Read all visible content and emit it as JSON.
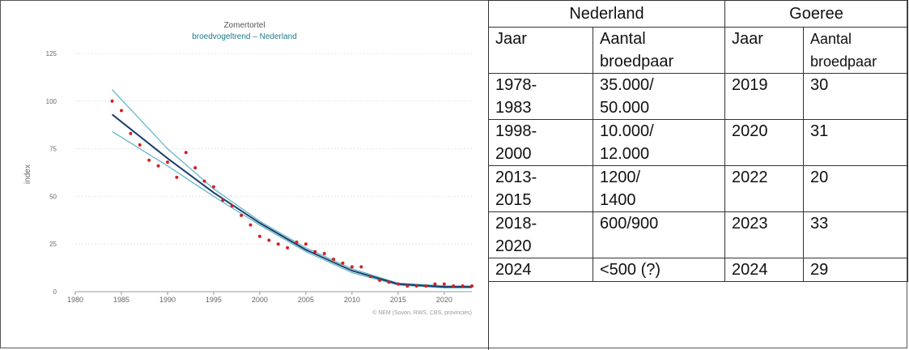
{
  "chart_data": {
    "type": "scatter",
    "title": "Zomertortel",
    "subtitle": "broedvogeltrend – Nederland",
    "ylabel": "index",
    "xlabel": "",
    "xlim": [
      1980,
      2023
    ],
    "ylim": [
      0,
      125
    ],
    "xticks": [
      1980,
      1985,
      1990,
      1995,
      2000,
      2005,
      2010,
      2015,
      2020
    ],
    "yticks": [
      0,
      25,
      50,
      75,
      100,
      125
    ],
    "grid": true,
    "credit": "© NEM (Sovon, RWS, CBS, provincies)",
    "points": {
      "x": [
        1984,
        1985,
        1986,
        1987,
        1988,
        1989,
        1990,
        1991,
        1992,
        1993,
        1994,
        1995,
        1996,
        1997,
        1998,
        1999,
        2000,
        2001,
        2002,
        2003,
        2004,
        2005,
        2006,
        2007,
        2008,
        2009,
        2010,
        2011,
        2012,
        2013,
        2014,
        2015,
        2016,
        2017,
        2018,
        2019,
        2020,
        2021,
        2022,
        2023
      ],
      "y": [
        100,
        95,
        83,
        77,
        69,
        66,
        68,
        60,
        73,
        65,
        58,
        55,
        48,
        45,
        40,
        35,
        29,
        27,
        25,
        23,
        26,
        25,
        21,
        20,
        17,
        15,
        13,
        13,
        8,
        6,
        5,
        4,
        3,
        3,
        3,
        4,
        4,
        3,
        3,
        3
      ]
    },
    "trend": {
      "x": [
        1984,
        1990,
        1995,
        2000,
        2005,
        2010,
        2015,
        2020,
        2023
      ],
      "y": [
        93,
        70,
        52,
        36,
        22,
        11,
        4,
        2.5,
        2.5
      ]
    },
    "upper": {
      "x": [
        1984,
        1990,
        1995,
        2000,
        2005,
        2010,
        2015,
        2020,
        2023
      ],
      "y": [
        106,
        75,
        54,
        37,
        23,
        12,
        4.5,
        3,
        3
      ]
    },
    "lower": {
      "x": [
        1984,
        1990,
        1995,
        2000,
        2005,
        2010,
        2015,
        2020,
        2023
      ],
      "y": [
        84,
        66,
        50,
        35,
        21,
        10,
        3.5,
        2,
        2
      ]
    },
    "colors": {
      "points": "#d42020",
      "trend": "#1a3f6f",
      "band": "#58b3c4",
      "title": "#555555",
      "subtitle": "#1e7a8c"
    }
  },
  "table": {
    "group_headers": [
      "Nederland",
      "Goeree"
    ],
    "column_headers": [
      [
        "Jaar"
      ],
      [
        "Aantal",
        "broedpaar"
      ],
      [
        "Jaar"
      ],
      [
        "Aantal",
        "broedpaar"
      ]
    ],
    "rows": [
      [
        [
          "1978-",
          "1983"
        ],
        [
          "35.000/",
          "50.000"
        ],
        [
          "2019"
        ],
        [
          "30"
        ]
      ],
      [
        [
          "1998-",
          "2000"
        ],
        [
          "10.000/",
          "12.000"
        ],
        [
          "2020"
        ],
        [
          "31"
        ]
      ],
      [
        [
          "2013-",
          "2015"
        ],
        [
          "1200/",
          "1400"
        ],
        [
          "2022"
        ],
        [
          "20"
        ]
      ],
      [
        [
          "2018-",
          "2020"
        ],
        [
          "600/900"
        ],
        [
          "2023"
        ],
        [
          "33"
        ]
      ],
      [
        [
          "2024"
        ],
        [
          "<500 (?)"
        ],
        [
          "2024"
        ],
        [
          "29"
        ]
      ]
    ]
  }
}
